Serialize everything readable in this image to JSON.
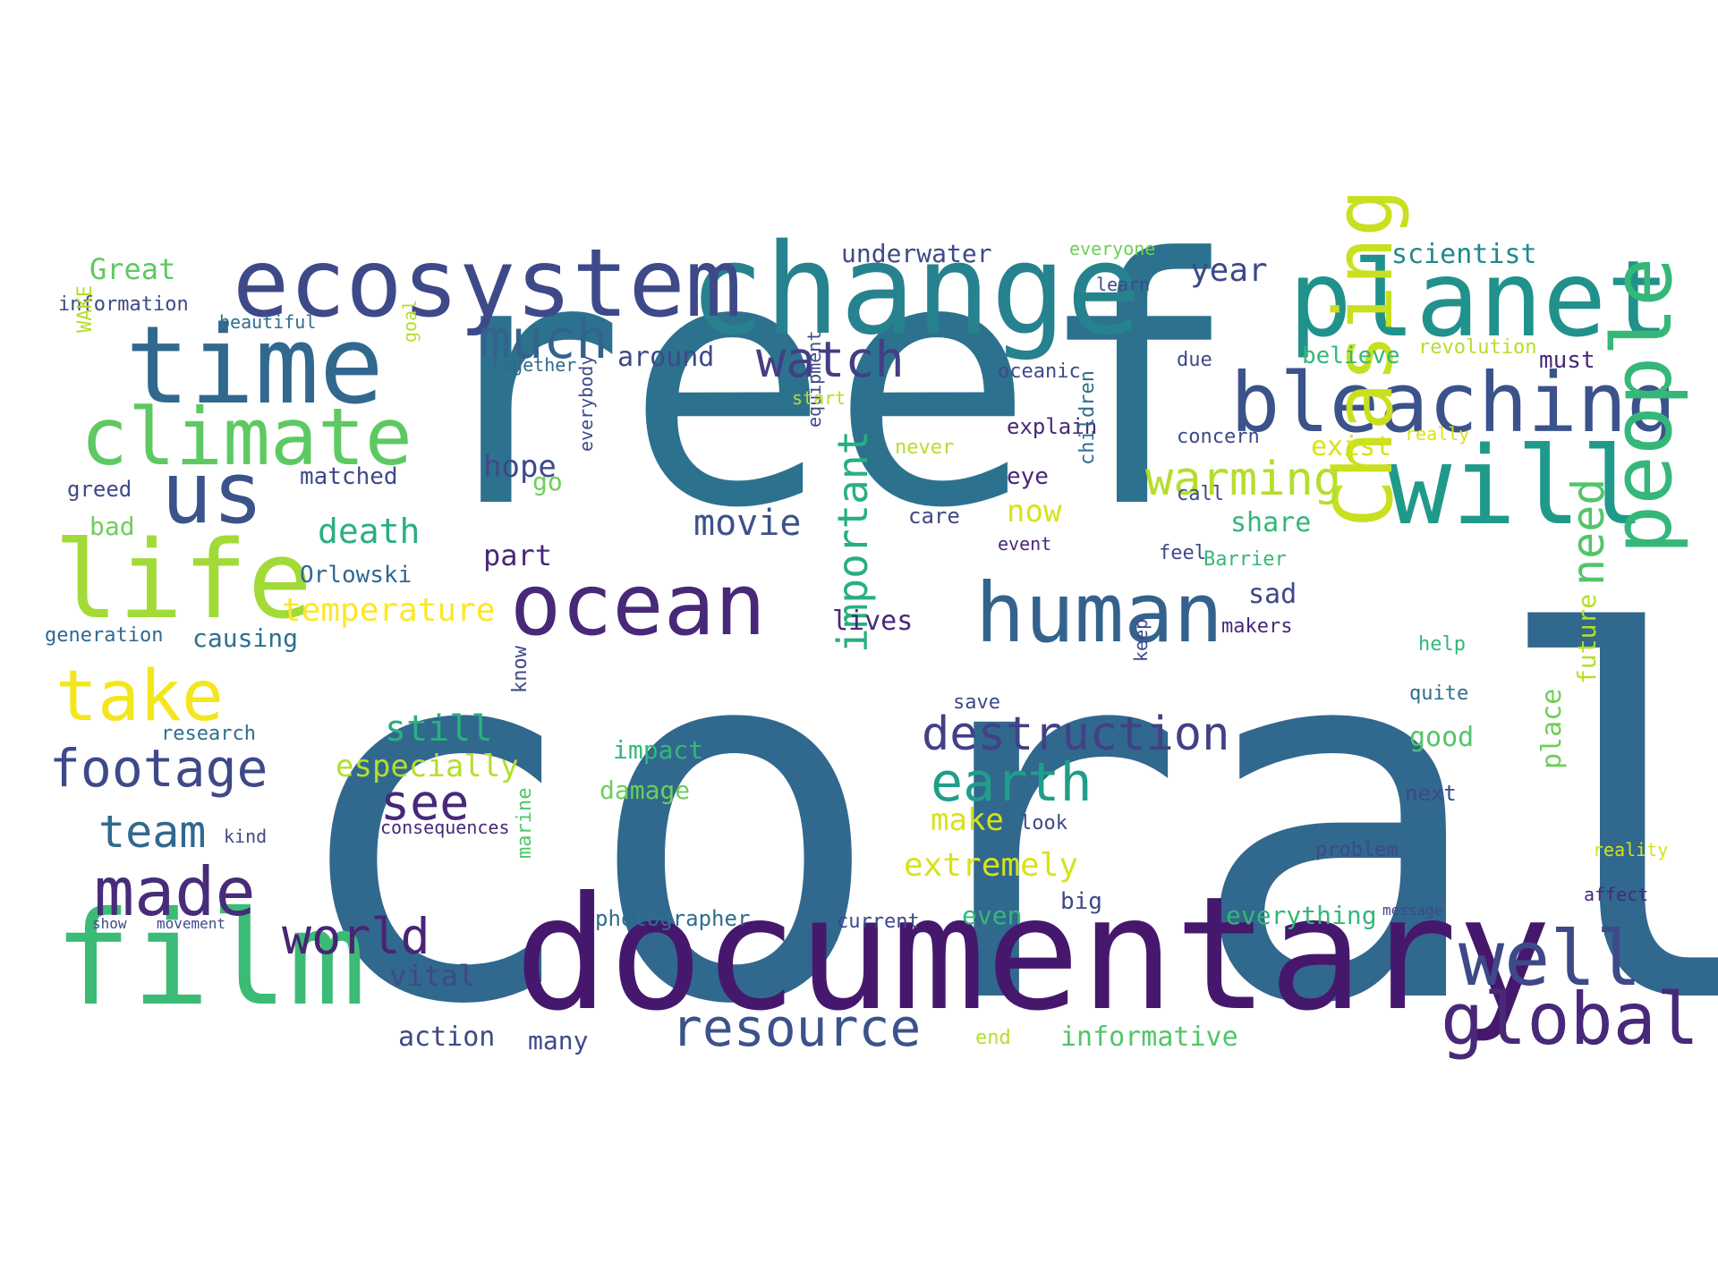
{
  "wordcloud": {
    "background": "#ffffff",
    "colors": {
      "dark_purple": "#440154",
      "indigo": "#482878",
      "slate_blue": "#3e4989",
      "steel_blue": "#31688e",
      "teal": "#26828e",
      "green_teal": "#1f9e89",
      "green": "#35b779",
      "light_green": "#6ece58",
      "lime": "#b5de2b",
      "yellow": "#fde725"
    },
    "words": [
      {
        "text": "coral",
        "color": "#31688e"
      },
      {
        "text": "reef",
        "color": "#2c728e"
      },
      {
        "text": "documentary",
        "color": "#46186d"
      },
      {
        "text": "change",
        "color": "#26828e"
      },
      {
        "text": "film",
        "color": "#3bbb75"
      },
      {
        "text": "planet",
        "color": "#21918c"
      },
      {
        "text": "ecosystem",
        "color": "#3e4989"
      },
      {
        "text": "time",
        "color": "#31688e"
      },
      {
        "text": "will",
        "color": "#1f9a8a"
      },
      {
        "text": "bleaching",
        "color": "#3b528b"
      },
      {
        "text": "ocean",
        "color": "#482878"
      },
      {
        "text": "human",
        "color": "#33638d"
      },
      {
        "text": "life",
        "color": "#a2da37"
      },
      {
        "text": "climate",
        "color": "#5ec962"
      },
      {
        "text": "us",
        "color": "#3b528b"
      },
      {
        "text": "people",
        "color": "#35b779"
      },
      {
        "text": "Chasing",
        "color": "#c8e020"
      },
      {
        "text": "global",
        "color": "#482878"
      },
      {
        "text": "well",
        "color": "#3e4989"
      },
      {
        "text": "take",
        "color": "#f4e61e"
      },
      {
        "text": "made",
        "color": "#472c7a"
      },
      {
        "text": "resource",
        "color": "#3b528b"
      },
      {
        "text": "destruction",
        "color": "#424086"
      },
      {
        "text": "footage",
        "color": "#3e4989"
      },
      {
        "text": "much",
        "color": "#33638d"
      },
      {
        "text": "watch",
        "color": "#433e85"
      },
      {
        "text": "earth",
        "color": "#1f9e89"
      },
      {
        "text": "warming",
        "color": "#b5de2b"
      },
      {
        "text": "world",
        "color": "#482475"
      },
      {
        "text": "important",
        "color": "#29af7f"
      },
      {
        "text": "need",
        "color": "#52c569"
      },
      {
        "text": "team",
        "color": "#31688e"
      },
      {
        "text": "see",
        "color": "#482878"
      },
      {
        "text": "movie",
        "color": "#3b528b"
      },
      {
        "text": "year",
        "color": "#3e4989"
      },
      {
        "text": "scientist",
        "color": "#23888e"
      },
      {
        "text": "underwater",
        "color": "#3e4989"
      },
      {
        "text": "Great",
        "color": "#5ec962"
      },
      {
        "text": "information",
        "color": "#3e4989"
      },
      {
        "text": "beautiful",
        "color": "#2e6f8e"
      },
      {
        "text": "matched",
        "color": "#3e4989"
      },
      {
        "text": "greed",
        "color": "#3e4989"
      },
      {
        "text": "bad",
        "color": "#6ece58"
      },
      {
        "text": "death",
        "color": "#2ab07f"
      },
      {
        "text": "Orlowski",
        "color": "#31688e"
      },
      {
        "text": "temperature",
        "color": "#fde725"
      },
      {
        "text": "causing",
        "color": "#2e6f8e"
      },
      {
        "text": "generation",
        "color": "#31688e"
      },
      {
        "text": "research",
        "color": "#2e6f8e"
      },
      {
        "text": "still",
        "color": "#2ab07f"
      },
      {
        "text": "especially",
        "color": "#b5de2b"
      },
      {
        "text": "impact",
        "color": "#35b779"
      },
      {
        "text": "damage",
        "color": "#6ece58"
      },
      {
        "text": "kind",
        "color": "#3e4989"
      },
      {
        "text": "consequences",
        "color": "#482878"
      },
      {
        "text": "show",
        "color": "#3e4989"
      },
      {
        "text": "movement",
        "color": "#3e4989"
      },
      {
        "text": "photographer",
        "color": "#2e6f8e"
      },
      {
        "text": "current",
        "color": "#3e4989"
      },
      {
        "text": "even",
        "color": "#35b779"
      },
      {
        "text": "everything",
        "color": "#35b779"
      },
      {
        "text": "big",
        "color": "#3e4989"
      },
      {
        "text": "vital",
        "color": "#3e4989"
      },
      {
        "text": "action",
        "color": "#3e4989"
      },
      {
        "text": "many",
        "color": "#3e4989"
      },
      {
        "text": "informative",
        "color": "#52c569"
      },
      {
        "text": "end",
        "color": "#b5de2b"
      },
      {
        "text": "extremely",
        "color": "#d8e219"
      },
      {
        "text": "make",
        "color": "#d8e219"
      },
      {
        "text": "look",
        "color": "#3e4989"
      },
      {
        "text": "lives",
        "color": "#482878"
      },
      {
        "text": "around",
        "color": "#3e4989"
      },
      {
        "text": "together",
        "color": "#31688e"
      },
      {
        "text": "hope",
        "color": "#3e4989"
      },
      {
        "text": "go",
        "color": "#6ece58"
      },
      {
        "text": "part",
        "color": "#482878"
      },
      {
        "text": "now",
        "color": "#d8e219"
      },
      {
        "text": "eye",
        "color": "#482878"
      },
      {
        "text": "care",
        "color": "#3e4989"
      },
      {
        "text": "explain",
        "color": "#482878"
      },
      {
        "text": "never",
        "color": "#b5de2b"
      },
      {
        "text": "oceanic",
        "color": "#3e4989"
      },
      {
        "text": "concern",
        "color": "#3e4989"
      },
      {
        "text": "exist",
        "color": "#d8e219"
      },
      {
        "text": "believe",
        "color": "#35b779"
      },
      {
        "text": "revolution",
        "color": "#b5de2b"
      },
      {
        "text": "must",
        "color": "#482878"
      },
      {
        "text": "due",
        "color": "#3e4989"
      },
      {
        "text": "share",
        "color": "#35b779"
      },
      {
        "text": "Barrier",
        "color": "#35b779"
      },
      {
        "text": "call",
        "color": "#3e4989"
      },
      {
        "text": "feel",
        "color": "#3e4989"
      },
      {
        "text": "sad",
        "color": "#3e4989"
      },
      {
        "text": "help",
        "color": "#35b779"
      },
      {
        "text": "quite",
        "color": "#2e6f8e"
      },
      {
        "text": "good",
        "color": "#52c569"
      },
      {
        "text": "next",
        "color": "#3e4989"
      },
      {
        "text": "problem",
        "color": "#3e4989"
      },
      {
        "text": "save",
        "color": "#3e4989"
      },
      {
        "text": "future",
        "color": "#b5de2b"
      },
      {
        "text": "place",
        "color": "#6ece58"
      },
      {
        "text": "makers",
        "color": "#482878"
      },
      {
        "text": "reality",
        "color": "#d8e219"
      },
      {
        "text": "affect",
        "color": "#482878"
      },
      {
        "text": "message",
        "color": "#3e4989"
      },
      {
        "text": "learn",
        "color": "#3e4989"
      },
      {
        "text": "everyone",
        "color": "#6ece58"
      },
      {
        "text": "WAKE",
        "color": "#b5de2b"
      },
      {
        "text": "goal",
        "color": "#b5de2b"
      },
      {
        "text": "know",
        "color": "#3e4989"
      },
      {
        "text": "everybody",
        "color": "#3e4989"
      },
      {
        "text": "equipment",
        "color": "#3e4989"
      },
      {
        "text": "children",
        "color": "#2e6f8e"
      },
      {
        "text": "marine",
        "color": "#52c569"
      },
      {
        "text": "keep",
        "color": "#3e4989"
      },
      {
        "text": "event",
        "color": "#482878"
      },
      {
        "text": "start",
        "color": "#b5de2b"
      },
      {
        "text": "really",
        "color": "#d8e219"
      }
    ]
  }
}
